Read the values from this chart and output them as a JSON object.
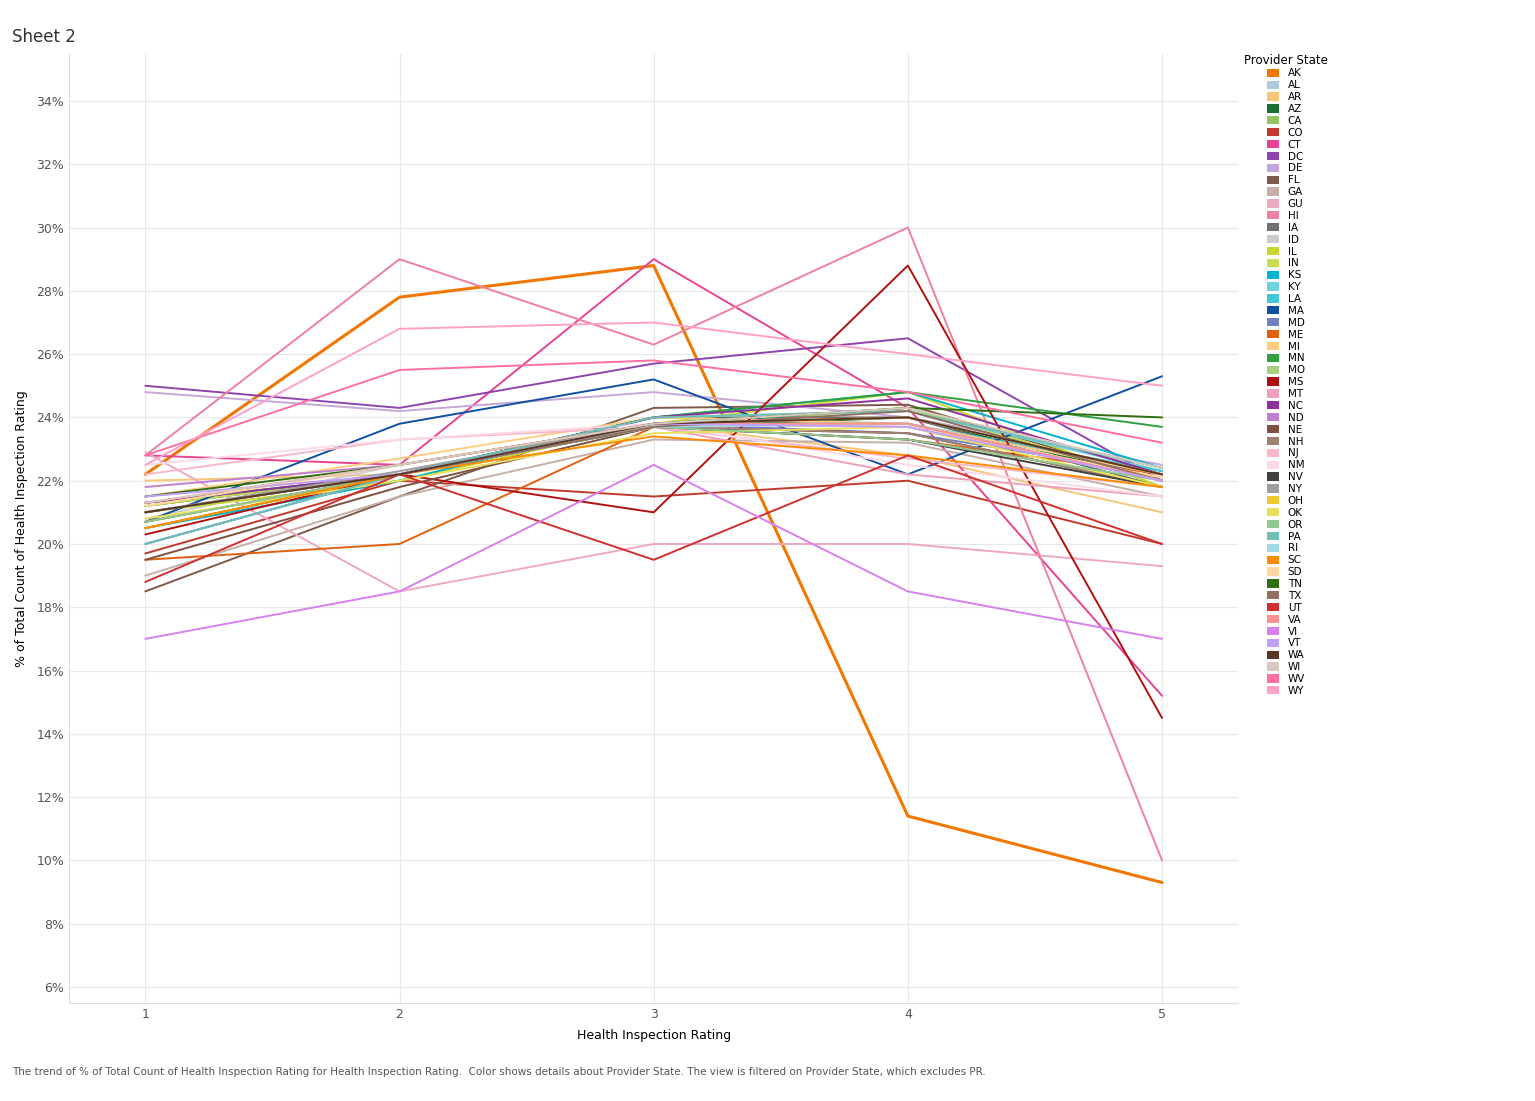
{
  "title": "Sheet 2",
  "xlabel": "Health Inspection Rating",
  "ylabel": "% of Total Count of Health Inspection Rating",
  "caption": "The trend of % of Total Count of Health Inspection Rating for Health Inspection Rating.  Color shows details about Provider State. The view is filtered on Provider State, which excludes PR.",
  "x_values": [
    1,
    2,
    3,
    4,
    5
  ],
  "xlim": [
    0.7,
    5.3
  ],
  "ylim": [
    0.055,
    0.355
  ],
  "yticks": [
    0.06,
    0.08,
    0.1,
    0.12,
    0.14,
    0.16,
    0.18,
    0.2,
    0.22,
    0.24,
    0.26,
    0.28,
    0.3,
    0.32,
    0.34
  ],
  "ytick_labels": [
    "6%",
    "8%",
    "10%",
    "12%",
    "14%",
    "16%",
    "18%",
    "20%",
    "22%",
    "24%",
    "26%",
    "28%",
    "30%",
    "32%",
    "34%"
  ],
  "states": {
    "AK": {
      "color": "#F07800",
      "data": [
        0.222,
        0.278,
        0.288,
        0.114,
        0.093
      ]
    },
    "AL": {
      "color": "#AECBDE",
      "data": [
        0.21,
        0.222,
        0.237,
        0.24,
        0.22
      ]
    },
    "AR": {
      "color": "#F5C57A",
      "data": [
        0.22,
        0.222,
        0.238,
        0.228,
        0.21
      ]
    },
    "AZ": {
      "color": "#1A7030",
      "data": [
        0.212,
        0.222,
        0.237,
        0.24,
        0.22
      ]
    },
    "CA": {
      "color": "#93C464",
      "data": [
        0.213,
        0.222,
        0.237,
        0.243,
        0.223
      ]
    },
    "CO": {
      "color": "#C0392B",
      "data": [
        0.197,
        0.22,
        0.215,
        0.22,
        0.2
      ]
    },
    "CT": {
      "color": "#E84393",
      "data": [
        0.228,
        0.225,
        0.29,
        0.243,
        0.152
      ]
    },
    "DC": {
      "color": "#8E44AD",
      "data": [
        0.25,
        0.243,
        0.257,
        0.265,
        0.22
      ]
    },
    "DE": {
      "color": "#C5A8D8",
      "data": [
        0.248,
        0.242,
        0.248,
        0.24,
        0.225
      ]
    },
    "FL": {
      "color": "#7D5A4A",
      "data": [
        0.185,
        0.215,
        0.243,
        0.244,
        0.22
      ]
    },
    "GA": {
      "color": "#C5AFA8",
      "data": [
        0.19,
        0.215,
        0.233,
        0.232,
        0.215
      ]
    },
    "GU": {
      "color": "#EFA8C2",
      "data": [
        0.229,
        0.185,
        0.2,
        0.2,
        0.193
      ]
    },
    "HI": {
      "color": "#F080A0",
      "data": [
        0.228,
        0.29,
        0.263,
        0.3,
        0.1
      ]
    },
    "IA": {
      "color": "#707070",
      "data": [
        0.21,
        0.222,
        0.24,
        0.24,
        0.218
      ]
    },
    "ID": {
      "color": "#CCCCCC",
      "data": [
        0.208,
        0.225,
        0.238,
        0.237,
        0.22
      ]
    },
    "IL": {
      "color": "#C8D82A",
      "data": [
        0.21,
        0.22,
        0.238,
        0.248,
        0.218
      ]
    },
    "IN": {
      "color": "#C8DC50",
      "data": [
        0.212,
        0.222,
        0.238,
        0.243,
        0.22
      ]
    },
    "KS": {
      "color": "#00B4CC",
      "data": [
        0.205,
        0.22,
        0.24,
        0.248,
        0.224
      ]
    },
    "KY": {
      "color": "#70D0E0",
      "data": [
        0.2,
        0.222,
        0.24,
        0.242,
        0.223
      ]
    },
    "LA": {
      "color": "#40C8D8",
      "data": [
        0.207,
        0.222,
        0.24,
        0.238,
        0.223
      ]
    },
    "MA": {
      "color": "#1050A0",
      "data": [
        0.207,
        0.238,
        0.252,
        0.222,
        0.253
      ]
    },
    "MD": {
      "color": "#7080C0",
      "data": [
        0.2,
        0.222,
        0.238,
        0.235,
        0.222
      ]
    },
    "ME": {
      "color": "#E06010",
      "data": [
        0.195,
        0.2,
        0.237,
        0.233,
        0.222
      ]
    },
    "MI": {
      "color": "#FFCC80",
      "data": [
        0.215,
        0.227,
        0.24,
        0.238,
        0.222
      ]
    },
    "MN": {
      "color": "#30A040",
      "data": [
        0.213,
        0.222,
        0.24,
        0.248,
        0.237
      ]
    },
    "MO": {
      "color": "#A8D080",
      "data": [
        0.21,
        0.222,
        0.238,
        0.238,
        0.22
      ]
    },
    "MS": {
      "color": "#B01010",
      "data": [
        0.203,
        0.222,
        0.21,
        0.288,
        0.145
      ]
    },
    "MT": {
      "color": "#F0A0B8",
      "data": [
        0.207,
        0.222,
        0.237,
        0.222,
        0.215
      ]
    },
    "NC": {
      "color": "#9030A0",
      "data": [
        0.213,
        0.222,
        0.24,
        0.246,
        0.222
      ]
    },
    "ND": {
      "color": "#C080D0",
      "data": [
        0.218,
        0.225,
        0.238,
        0.24,
        0.222
      ]
    },
    "NE": {
      "color": "#7D5040",
      "data": [
        0.195,
        0.218,
        0.237,
        0.235,
        0.218
      ]
    },
    "NH": {
      "color": "#A08070",
      "data": [
        0.207,
        0.222,
        0.237,
        0.235,
        0.218
      ]
    },
    "NJ": {
      "color": "#F8B8C8",
      "data": [
        0.222,
        0.233,
        0.237,
        0.227,
        0.218
      ]
    },
    "NM": {
      "color": "#FCD8E8",
      "data": [
        0.225,
        0.233,
        0.238,
        0.225,
        0.215
      ]
    },
    "NV": {
      "color": "#404040",
      "data": [
        0.205,
        0.222,
        0.237,
        0.233,
        0.218
      ]
    },
    "NY": {
      "color": "#9E9E9E",
      "data": [
        0.21,
        0.223,
        0.238,
        0.238,
        0.22
      ]
    },
    "OH": {
      "color": "#F0C830",
      "data": [
        0.205,
        0.222,
        0.238,
        0.24,
        0.222
      ]
    },
    "OK": {
      "color": "#E8E058",
      "data": [
        0.208,
        0.22,
        0.235,
        0.237,
        0.218
      ]
    },
    "OR": {
      "color": "#90C890",
      "data": [
        0.207,
        0.222,
        0.237,
        0.233,
        0.22
      ]
    },
    "PA": {
      "color": "#70C0B8",
      "data": [
        0.2,
        0.222,
        0.24,
        0.242,
        0.224
      ]
    },
    "RI": {
      "color": "#A0D8E8",
      "data": [
        0.21,
        0.222,
        0.237,
        0.238,
        0.22
      ]
    },
    "SC": {
      "color": "#FF8C00",
      "data": [
        0.205,
        0.222,
        0.234,
        0.228,
        0.218
      ]
    },
    "SD": {
      "color": "#FFD8A0",
      "data": [
        0.212,
        0.225,
        0.238,
        0.237,
        0.221
      ]
    },
    "TN": {
      "color": "#2E7010",
      "data": [
        0.215,
        0.225,
        0.238,
        0.243,
        0.24
      ]
    },
    "TX": {
      "color": "#907060",
      "data": [
        0.21,
        0.222,
        0.237,
        0.242,
        0.22
      ]
    },
    "UT": {
      "color": "#D03030",
      "data": [
        0.188,
        0.222,
        0.195,
        0.228,
        0.2
      ]
    },
    "VA": {
      "color": "#FF9090",
      "data": [
        0.213,
        0.225,
        0.238,
        0.238,
        0.22
      ]
    },
    "VI": {
      "color": "#D880F0",
      "data": [
        0.17,
        0.185,
        0.225,
        0.185,
        0.17
      ]
    },
    "VT": {
      "color": "#C0A0F8",
      "data": [
        0.215,
        0.222,
        0.238,
        0.237,
        0.22
      ]
    },
    "WA": {
      "color": "#5A3828",
      "data": [
        0.21,
        0.222,
        0.238,
        0.24,
        0.222
      ]
    },
    "WI": {
      "color": "#D8C8C0",
      "data": [
        0.213,
        0.225,
        0.238,
        0.243,
        0.224
      ]
    },
    "WV": {
      "color": "#FF70A0",
      "data": [
        0.228,
        0.255,
        0.258,
        0.248,
        0.232
      ]
    },
    "WY": {
      "color": "#FFA0C8",
      "data": [
        0.225,
        0.268,
        0.27,
        0.26,
        0.25
      ]
    }
  },
  "legend_title": "Provider State",
  "background": "#ffffff"
}
